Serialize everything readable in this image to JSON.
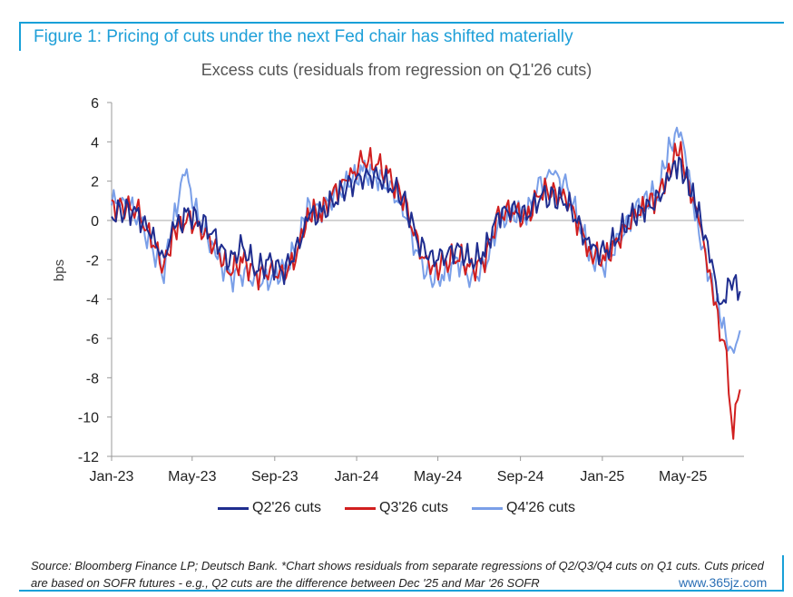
{
  "figure_title": "Figure 1: Pricing of cuts under the next Fed chair has shifted materially",
  "watermark": "www.365jz.com",
  "source_note": "Source: Bloomberg Finance LP; Deutsch Bank. *Chart shows residuals from separate regressions of Q2/Q3/Q4 cuts on Q1 cuts. Cuts priced are based on SOFR futures - e.g., Q2 cuts are the difference between Dec '25 and Mar '26 SOFR",
  "chart_data": {
    "type": "line",
    "title": "Excess cuts (residuals from regression on Q1'26 cuts)",
    "xlabel": "",
    "ylabel": "bps",
    "ylim": [
      -12,
      6
    ],
    "yticks": [
      6,
      4,
      2,
      0,
      -2,
      -4,
      -6,
      -8,
      -10,
      -12
    ],
    "xticks": [
      "Jan-23",
      "May-23",
      "Sep-23",
      "Jan-24",
      "May-24",
      "Sep-24",
      "Jan-25",
      "May-25"
    ],
    "xlim": [
      "2023-01-01",
      "2025-07-31"
    ],
    "legend_position": "bottom",
    "grid": false,
    "series": [
      {
        "name": "Q2'26 cuts",
        "color": "#1f2d8f",
        "points": [
          [
            "2023-01-01",
            0.2
          ],
          [
            "2023-01-20",
            0.6
          ],
          [
            "2023-02-10",
            0.3
          ],
          [
            "2023-03-01",
            -0.8
          ],
          [
            "2023-03-20",
            -1.8
          ],
          [
            "2023-04-05",
            -0.4
          ],
          [
            "2023-04-25",
            0.3
          ],
          [
            "2023-05-15",
            0.0
          ],
          [
            "2023-06-05",
            -1.0
          ],
          [
            "2023-06-25",
            -2.0
          ],
          [
            "2023-07-15",
            -1.4
          ],
          [
            "2023-08-05",
            -2.4
          ],
          [
            "2023-08-25",
            -2.2
          ],
          [
            "2023-09-15",
            -2.5
          ],
          [
            "2023-10-05",
            -1.5
          ],
          [
            "2023-10-20",
            0.3
          ],
          [
            "2023-11-10",
            0.3
          ],
          [
            "2023-12-01",
            1.2
          ],
          [
            "2023-12-20",
            1.7
          ],
          [
            "2024-01-10",
            2.3
          ],
          [
            "2024-01-30",
            2.2
          ],
          [
            "2024-02-20",
            1.8
          ],
          [
            "2024-03-10",
            1.2
          ],
          [
            "2024-04-01",
            -1.0
          ],
          [
            "2024-04-20",
            -2.0
          ],
          [
            "2024-05-10",
            -1.8
          ],
          [
            "2024-05-30",
            -1.4
          ],
          [
            "2024-06-20",
            -2.1
          ],
          [
            "2024-07-10",
            -1.6
          ],
          [
            "2024-07-30",
            0.3
          ],
          [
            "2024-08-20",
            0.6
          ],
          [
            "2024-09-10",
            0.2
          ],
          [
            "2024-10-01",
            1.3
          ],
          [
            "2024-10-20",
            1.1
          ],
          [
            "2024-11-10",
            1.0
          ],
          [
            "2024-11-30",
            -0.5
          ],
          [
            "2024-12-15",
            -1.4
          ],
          [
            "2025-01-05",
            -1.7
          ],
          [
            "2025-01-25",
            -0.6
          ],
          [
            "2025-02-15",
            0.2
          ],
          [
            "2025-03-05",
            0.6
          ],
          [
            "2025-03-25",
            1.0
          ],
          [
            "2025-04-10",
            2.2
          ],
          [
            "2025-04-25",
            3.0
          ],
          [
            "2025-05-10",
            1.8
          ],
          [
            "2025-05-25",
            0.2
          ],
          [
            "2025-06-10",
            -1.5
          ],
          [
            "2025-06-25",
            -4.6
          ],
          [
            "2025-07-10",
            -3.0
          ],
          [
            "2025-07-25",
            -3.6
          ]
        ]
      },
      {
        "name": "Q3'26 cuts",
        "color": "#d11f1f",
        "points": [
          [
            "2023-01-01",
            0.6
          ],
          [
            "2023-01-20",
            0.8
          ],
          [
            "2023-02-10",
            0.4
          ],
          [
            "2023-03-01",
            -1.0
          ],
          [
            "2023-03-20",
            -2.3
          ],
          [
            "2023-04-05",
            -0.4
          ],
          [
            "2023-04-25",
            0.0
          ],
          [
            "2023-05-15",
            -0.4
          ],
          [
            "2023-06-05",
            -1.4
          ],
          [
            "2023-06-25",
            -2.6
          ],
          [
            "2023-07-15",
            -2.0
          ],
          [
            "2023-08-05",
            -2.8
          ],
          [
            "2023-08-25",
            -2.6
          ],
          [
            "2023-09-15",
            -2.8
          ],
          [
            "2023-10-05",
            -1.6
          ],
          [
            "2023-10-20",
            0.4
          ],
          [
            "2023-11-10",
            0.4
          ],
          [
            "2023-12-01",
            1.5
          ],
          [
            "2023-12-20",
            2.1
          ],
          [
            "2024-01-10",
            3.0
          ],
          [
            "2024-01-30",
            3.0
          ],
          [
            "2024-02-20",
            2.1
          ],
          [
            "2024-03-10",
            1.2
          ],
          [
            "2024-04-01",
            -1.3
          ],
          [
            "2024-04-20",
            -2.5
          ],
          [
            "2024-05-10",
            -2.3
          ],
          [
            "2024-05-30",
            -1.7
          ],
          [
            "2024-06-20",
            -2.6
          ],
          [
            "2024-07-10",
            -1.9
          ],
          [
            "2024-07-30",
            0.2
          ],
          [
            "2024-08-20",
            0.6
          ],
          [
            "2024-09-10",
            0.0
          ],
          [
            "2024-10-01",
            1.6
          ],
          [
            "2024-10-20",
            1.3
          ],
          [
            "2024-11-10",
            1.1
          ],
          [
            "2024-11-30",
            -0.5
          ],
          [
            "2024-12-15",
            -1.7
          ],
          [
            "2025-01-05",
            -2.0
          ],
          [
            "2025-01-25",
            -0.9
          ],
          [
            "2025-02-15",
            0.1
          ],
          [
            "2025-03-05",
            0.8
          ],
          [
            "2025-03-25",
            1.2
          ],
          [
            "2025-04-10",
            2.6
          ],
          [
            "2025-04-25",
            3.6
          ],
          [
            "2025-05-10",
            1.9
          ],
          [
            "2025-05-25",
            -0.2
          ],
          [
            "2025-06-10",
            -2.5
          ],
          [
            "2025-06-25",
            -5.8
          ],
          [
            "2025-07-05",
            -7.2
          ],
          [
            "2025-07-15",
            -10.6
          ],
          [
            "2025-07-25",
            -8.6
          ]
        ]
      },
      {
        "name": "Q4'26 cuts",
        "color": "#7a9fe8",
        "points": [
          [
            "2023-01-01",
            0.9
          ],
          [
            "2023-01-20",
            1.1
          ],
          [
            "2023-02-10",
            0.2
          ],
          [
            "2023-03-01",
            -1.3
          ],
          [
            "2023-03-20",
            -2.6
          ],
          [
            "2023-04-05",
            0.3
          ],
          [
            "2023-04-20",
            2.6
          ],
          [
            "2023-05-10",
            0.0
          ],
          [
            "2023-06-05",
            -1.6
          ],
          [
            "2023-06-25",
            -3.0
          ],
          [
            "2023-07-15",
            -2.6
          ],
          [
            "2023-08-05",
            -3.2
          ],
          [
            "2023-08-25",
            -2.9
          ],
          [
            "2023-09-15",
            -2.6
          ],
          [
            "2023-10-05",
            -1.2
          ],
          [
            "2023-10-20",
            0.6
          ],
          [
            "2023-11-10",
            0.6
          ],
          [
            "2023-12-01",
            1.3
          ],
          [
            "2023-12-20",
            1.9
          ],
          [
            "2024-01-10",
            2.5
          ],
          [
            "2024-01-30",
            2.3
          ],
          [
            "2024-02-20",
            1.6
          ],
          [
            "2024-03-10",
            0.7
          ],
          [
            "2024-04-01",
            -1.8
          ],
          [
            "2024-04-20",
            -3.0
          ],
          [
            "2024-05-10",
            -2.8
          ],
          [
            "2024-05-30",
            -2.0
          ],
          [
            "2024-06-20",
            -3.0
          ],
          [
            "2024-07-10",
            -2.4
          ],
          [
            "2024-07-30",
            0.0
          ],
          [
            "2024-08-20",
            0.4
          ],
          [
            "2024-09-10",
            0.3
          ],
          [
            "2024-10-01",
            1.9
          ],
          [
            "2024-10-20",
            2.4
          ],
          [
            "2024-11-10",
            1.6
          ],
          [
            "2024-11-30",
            -0.3
          ],
          [
            "2024-12-15",
            -1.9
          ],
          [
            "2025-01-05",
            -2.2
          ],
          [
            "2025-01-25",
            -1.1
          ],
          [
            "2025-02-15",
            0.4
          ],
          [
            "2025-03-05",
            1.1
          ],
          [
            "2025-03-25",
            1.5
          ],
          [
            "2025-04-10",
            3.5
          ],
          [
            "2025-04-25",
            4.9
          ],
          [
            "2025-05-10",
            2.2
          ],
          [
            "2025-05-25",
            -0.6
          ],
          [
            "2025-06-10",
            -3.0
          ],
          [
            "2025-06-25",
            -4.5
          ],
          [
            "2025-07-10",
            -7.0
          ],
          [
            "2025-07-25",
            -5.6
          ]
        ]
      }
    ]
  }
}
